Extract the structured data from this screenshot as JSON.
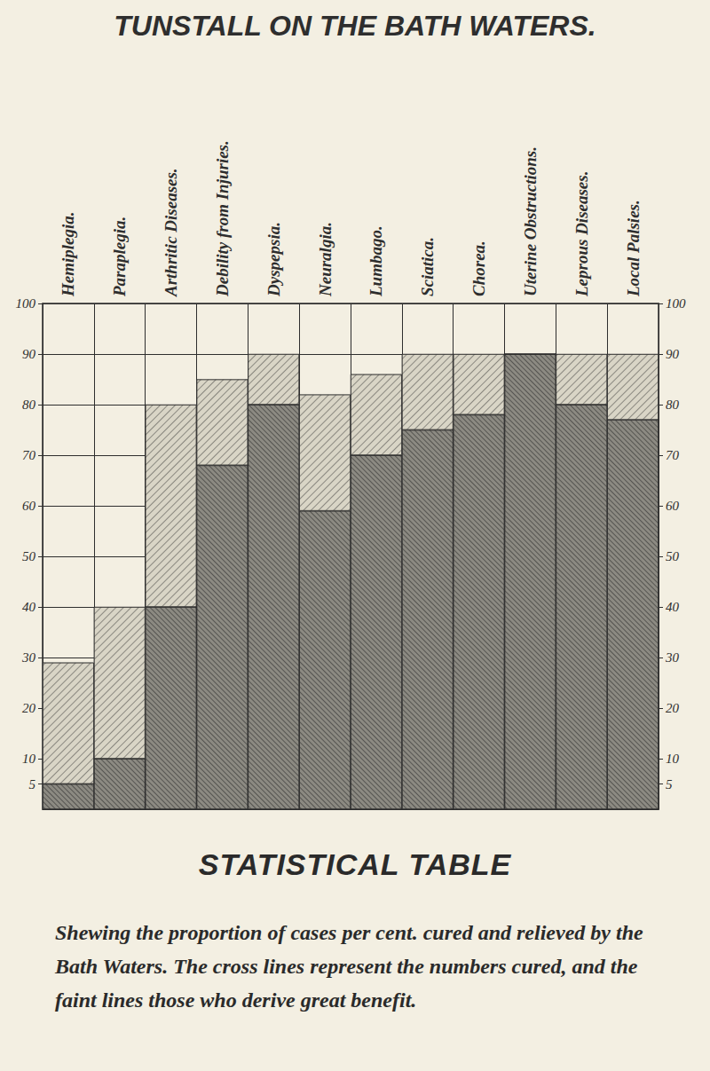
{
  "chart_data": {
    "type": "bar",
    "title": "TUNSTALL ON THE BATH WATERS.",
    "subtitle": "STATISTICAL TABLE",
    "caption": "Shewing the proportion of cases per cent. cured and relieved by the Bath Waters. The cross lines represent the numbers cured, and the faint lines those who derive great benefit.",
    "categories": [
      "Hemiplegia.",
      "Paraplegia.",
      "Arthritic Diseases.",
      "Debility from Injuries.",
      "Dyspepsia.",
      "Neuralgia.",
      "Lumbago.",
      "Sciatica.",
      "Chorea.",
      "Uterine Obstructions.",
      "Leprous Diseases.",
      "Local Palsies."
    ],
    "series": [
      {
        "name": "cured",
        "color": "#8c8a82",
        "values": [
          5,
          10,
          40,
          68,
          80,
          59,
          70,
          75,
          78,
          90,
          80,
          77
        ]
      },
      {
        "name": "great benefit",
        "color": "#d9d5c6",
        "values": [
          24,
          30,
          40,
          17,
          10,
          23,
          16,
          15,
          12,
          0,
          10,
          13
        ]
      }
    ],
    "stacked": true,
    "ylim": [
      0,
      100
    ],
    "yticks": [
      5,
      10,
      20,
      30,
      40,
      50,
      60,
      70,
      80,
      90,
      100
    ],
    "grid": true
  }
}
